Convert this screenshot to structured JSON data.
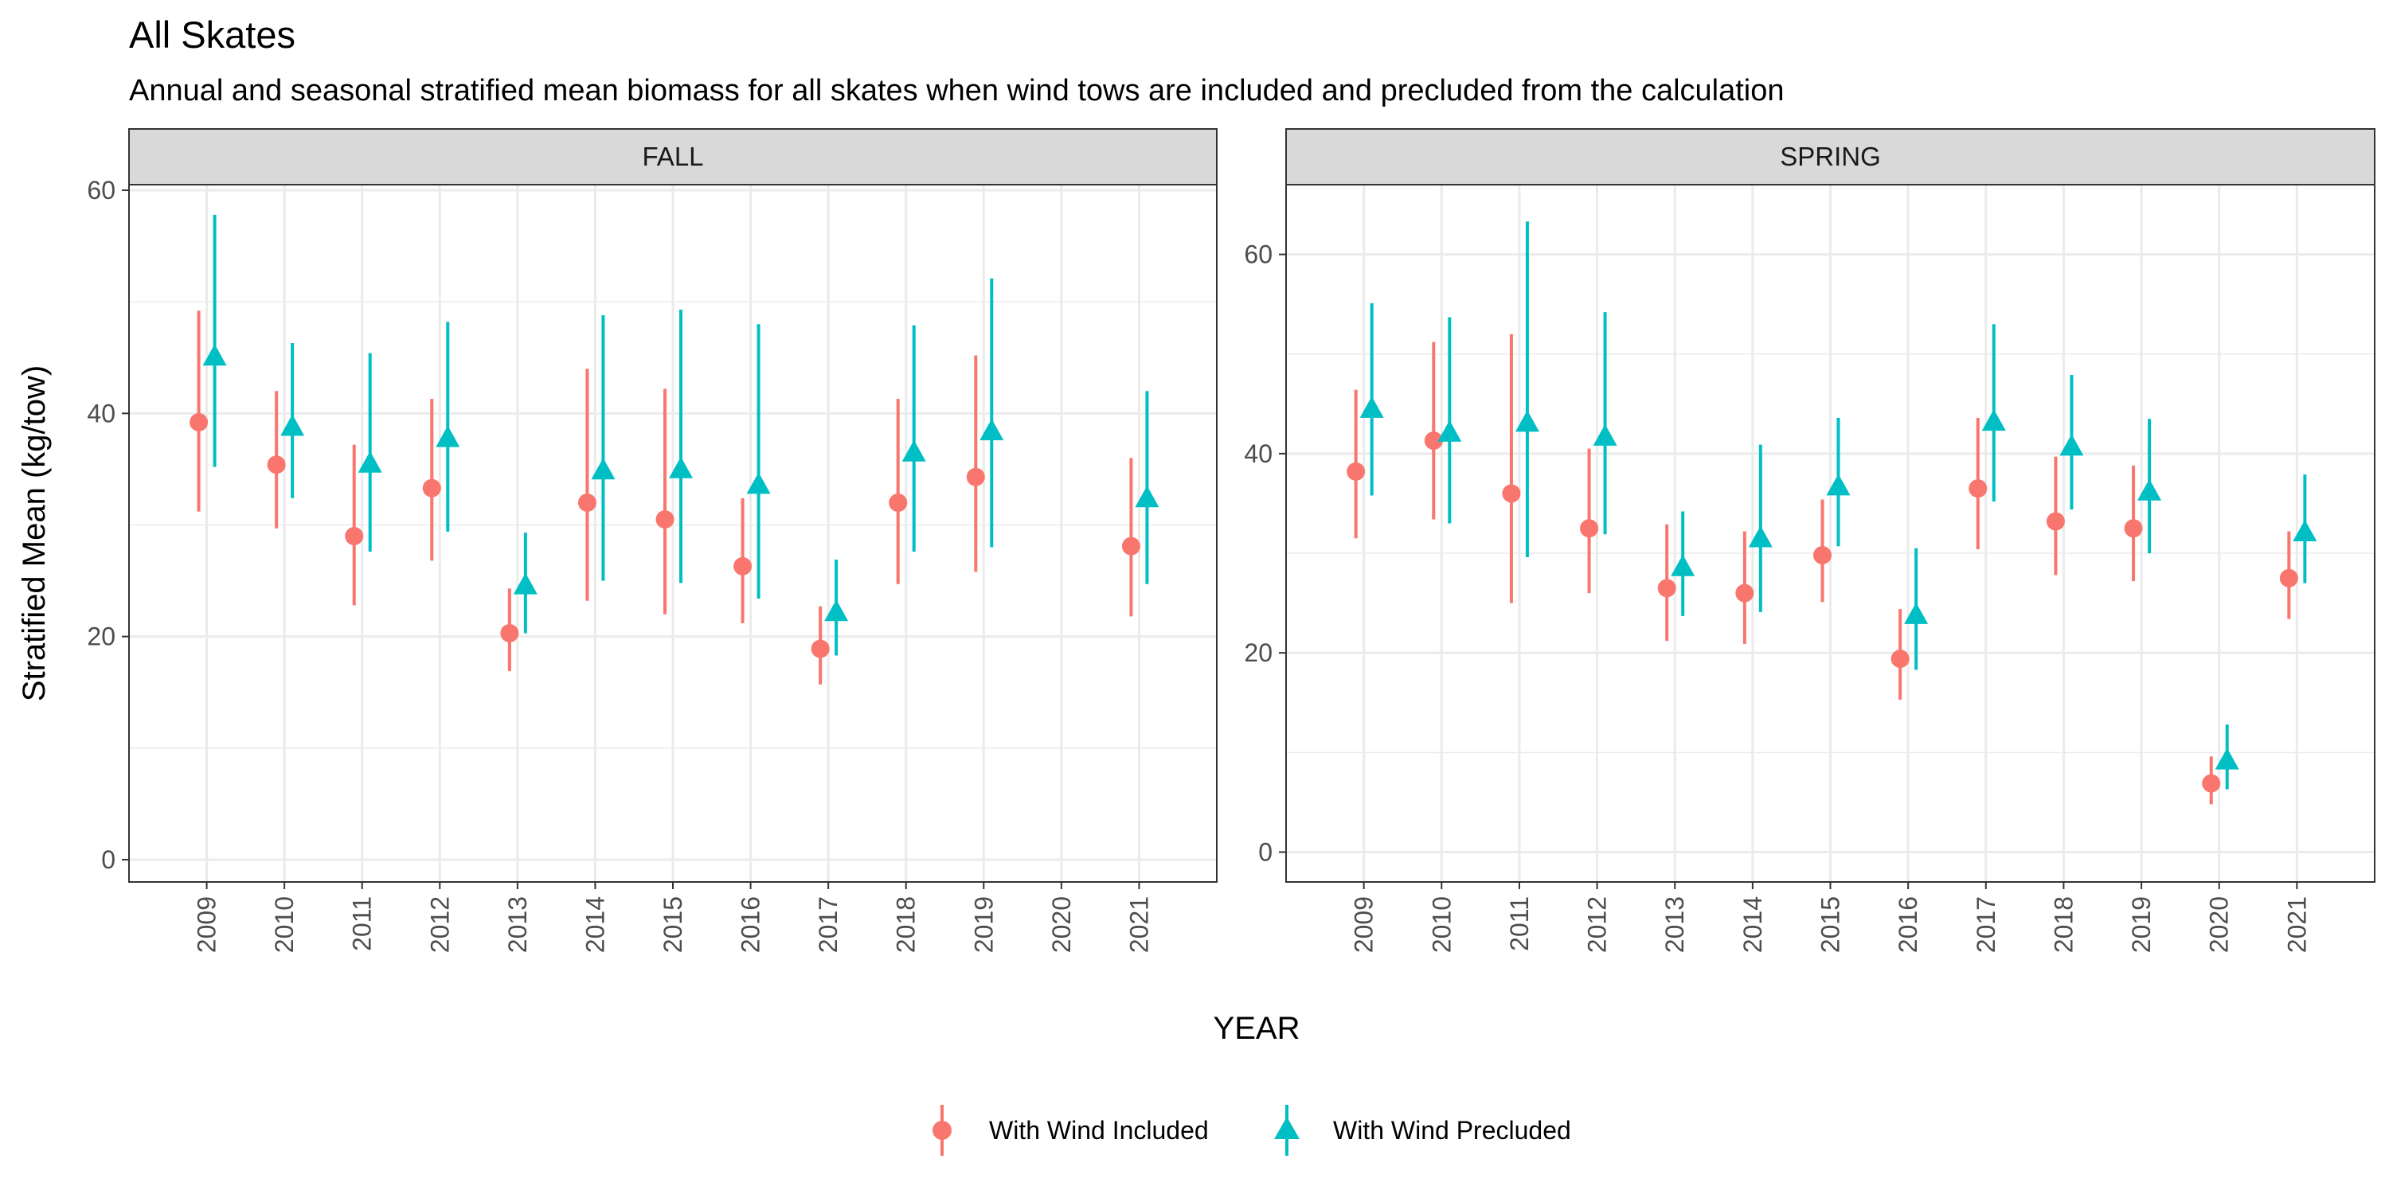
{
  "title": "All Skates",
  "subtitle": "Annual and seasonal stratified mean biomass for all skates when wind tows are included and precluded from the calculation",
  "colors": {
    "included": "#F8766D",
    "precluded": "#00BFC4",
    "strip_bg": "#D9D9D9",
    "grid": "#EBEBEB"
  },
  "chart_data": {
    "type": "scatter",
    "title": "All Skates",
    "subtitle": "Annual and seasonal stratified mean biomass for all skates when wind tows are included and precluded from the calculation",
    "xlabel": "YEAR",
    "ylabel": "Stratified Mean (kg/tow)",
    "legend_position": "bottom",
    "grid": true,
    "legend": [
      {
        "name": "With Wind Included",
        "shape": "circle",
        "color": "#F8766D"
      },
      {
        "name": "With Wind Precluded",
        "shape": "triangle",
        "color": "#00BFC4"
      }
    ],
    "panels": [
      {
        "name": "FALL",
        "ylim": [
          -2,
          60.5
        ],
        "yticks": [
          0,
          20,
          40,
          60
        ],
        "years": [
          "2009",
          "2010",
          "2011",
          "2012",
          "2013",
          "2014",
          "2015",
          "2016",
          "2017",
          "2018",
          "2019",
          "2020",
          "2021"
        ],
        "series": [
          {
            "name": "With Wind Included",
            "values": [
              39.2,
              35.4,
              29.0,
              33.3,
              20.3,
              32.0,
              30.5,
              26.3,
              18.9,
              32.0,
              34.3,
              null,
              28.1
            ],
            "low": [
              31.2,
              29.7,
              22.8,
              26.8,
              16.9,
              23.2,
              22.0,
              21.2,
              15.7,
              24.7,
              25.8,
              null,
              21.8
            ],
            "high": [
              49.2,
              42.0,
              37.2,
              41.3,
              24.3,
              44.0,
              42.2,
              32.4,
              22.7,
              41.3,
              45.2,
              null,
              36.0
            ]
          },
          {
            "name": "With Wind Precluded",
            "values": [
              45.0,
              38.7,
              35.4,
              37.7,
              24.5,
              34.8,
              34.9,
              33.5,
              22.1,
              36.4,
              38.3,
              null,
              32.3
            ],
            "low": [
              35.2,
              32.4,
              27.6,
              29.4,
              20.3,
              25.0,
              24.8,
              23.4,
              18.3,
              27.6,
              28.0,
              null,
              24.7
            ],
            "high": [
              57.8,
              46.3,
              45.4,
              48.2,
              29.3,
              48.8,
              49.3,
              48.0,
              26.9,
              47.9,
              52.1,
              null,
              42.0
            ]
          }
        ]
      },
      {
        "name": "SPRING",
        "ylim": [
          -3,
          67
        ],
        "yticks": [
          0,
          20,
          40,
          60
        ],
        "years": [
          "2009",
          "2010",
          "2011",
          "2012",
          "2013",
          "2014",
          "2015",
          "2016",
          "2017",
          "2018",
          "2019",
          "2020",
          "2021"
        ],
        "series": [
          {
            "name": "With Wind Included",
            "values": [
              38.2,
              41.3,
              36.0,
              32.5,
              26.5,
              26.0,
              29.8,
              19.4,
              36.5,
              33.2,
              32.5,
              6.9,
              27.5
            ],
            "low": [
              31.5,
              33.4,
              25.0,
              26.0,
              21.2,
              20.9,
              25.1,
              15.3,
              30.4,
              27.8,
              27.2,
              4.8,
              23.4
            ],
            "high": [
              46.4,
              51.2,
              52.0,
              40.5,
              32.9,
              32.2,
              35.4,
              24.4,
              43.6,
              39.7,
              38.8,
              9.6,
              32.2
            ]
          },
          {
            "name": "With Wind Precluded",
            "values": [
              44.4,
              42.0,
              43.0,
              41.6,
              28.5,
              31.4,
              36.6,
              23.7,
              43.1,
              40.6,
              36.1,
              9.1,
              32.0
            ],
            "low": [
              35.8,
              33.0,
              29.6,
              31.9,
              23.7,
              24.1,
              30.7,
              18.3,
              35.2,
              34.4,
              30.0,
              6.3,
              27.0
            ],
            "high": [
              55.1,
              53.7,
              63.3,
              54.2,
              34.2,
              40.9,
              43.6,
              30.5,
              53.0,
              47.9,
              43.5,
              12.8,
              37.9
            ]
          }
        ]
      }
    ]
  }
}
